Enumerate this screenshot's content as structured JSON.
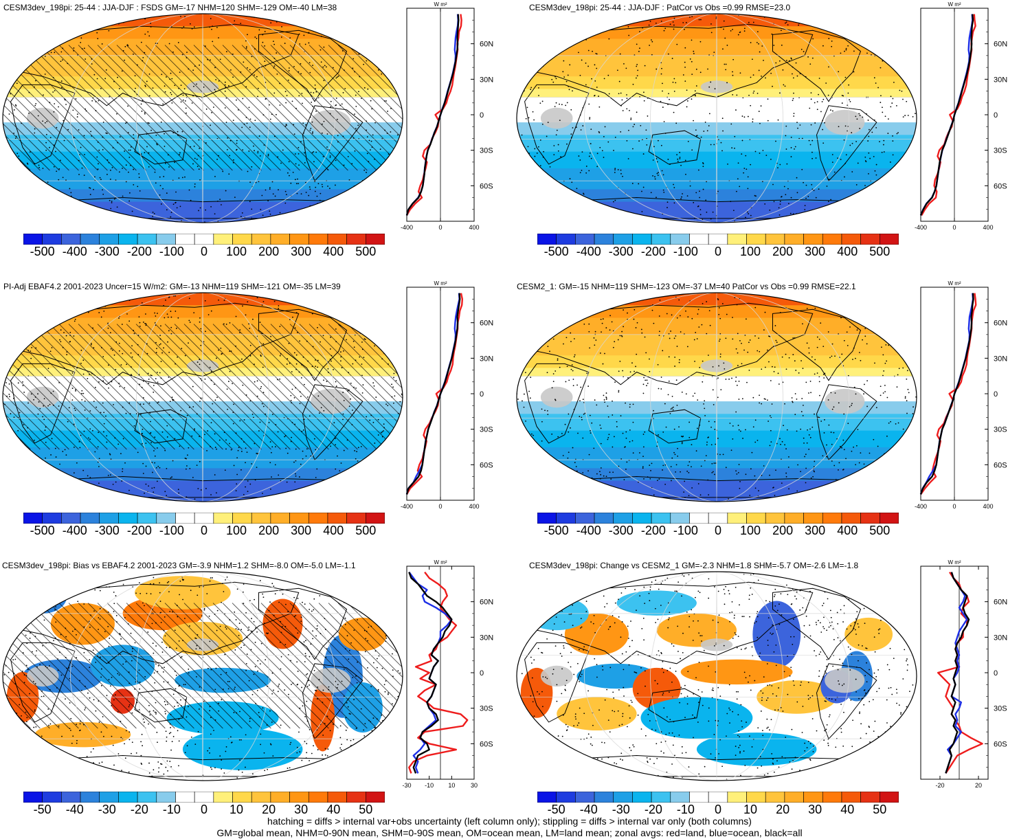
{
  "panels": [
    {
      "id": "p1",
      "title": "CESM3dev_198pi: 25-44 : JJA-DJF : FSDS GM=-17 NHM=120 SHM=-129 OM=-40 LM=38",
      "scale": "abs",
      "hatch": true,
      "stipple": true
    },
    {
      "id": "p2",
      "title": "CESM3dev_198pi: 25-44 : JJA-DJF : PatCor vs Obs =0.99 RMSE=23.0",
      "scale": "abs",
      "hatch": false,
      "stipple": true
    },
    {
      "id": "p3",
      "title": "PI-Adj EBAF4.2 2001-2023 Uncer=15 W/m2: GM=-13 NHM=119 SHM=-121 OM=-35 LM=39",
      "scale": "abs",
      "hatch": true,
      "stipple": true
    },
    {
      "id": "p4",
      "title": "CESM2_1: GM=-15 NHM=119 SHM=-123 OM=-37 LM=40 PatCor vs Obs =0.99 RMSE=22.1",
      "scale": "abs",
      "hatch": false,
      "stipple": true
    },
    {
      "id": "p5",
      "title": "CESM3dev_198pi: Bias vs EBAF4.2 2001-2023 GM=-3.9 NHM=1.2 SHM=-8.0 OM=-5.0 LM=-1.1",
      "scale": "diff",
      "hatch": true,
      "stipple": true
    },
    {
      "id": "p6",
      "title": "CESM3dev_198pi: Change vs CESM2_1 GM=-2.3 NHM=1.8 SHM=-5.7 OM=-2.6 LM=-1.8",
      "scale": "diff",
      "hatch": false,
      "stipple": true
    }
  ],
  "colorbars": {
    "abs": {
      "labels": [
        "-500",
        "-400",
        "-300",
        "-200",
        "-100",
        "0",
        "100",
        "200",
        "300",
        "400",
        "500"
      ]
    },
    "diff": {
      "labels": [
        "-50",
        "-40",
        "-30",
        "-20",
        "-10",
        "0",
        "10",
        "20",
        "30",
        "40",
        "50"
      ]
    }
  },
  "palette": [
    "#0a14e6",
    "#1e3ce0",
    "#3c64dc",
    "#2c82dc",
    "#1ea0e6",
    "#0ab4ee",
    "#3cc2f0",
    "#88ccec",
    "#ffffff",
    "#ffffff",
    "#fff07a",
    "#ffd84a",
    "#ffc43c",
    "#ffae28",
    "#ff9614",
    "#ff7a0a",
    "#f55a0a",
    "#e63214",
    "#d21414"
  ],
  "zonal": {
    "units": "W m²",
    "lat_labels": [
      "60N",
      "30N",
      "0",
      "30S",
      "60S"
    ],
    "abs_xticks": [
      "-400",
      "0",
      "400"
    ],
    "diff_left_xticks": [
      "-30",
      "-10",
      "10",
      "30"
    ],
    "diff_right_xticks": [
      "-20",
      "20"
    ],
    "legend": {
      "land": "red",
      "ocean": "blue",
      "all": "black"
    },
    "lat": [
      -85,
      -80,
      -75,
      -70,
      -65,
      -60,
      -55,
      -50,
      -45,
      -40,
      -35,
      -30,
      -25,
      -20,
      -15,
      -10,
      -5,
      0,
      5,
      10,
      15,
      20,
      25,
      30,
      35,
      40,
      45,
      50,
      55,
      60,
      65,
      70,
      75,
      80,
      85
    ],
    "p1": {
      "all": [
        -420,
        -380,
        -330,
        -260,
        -230,
        -210,
        -200,
        -190,
        -185,
        -175,
        -165,
        -150,
        -120,
        -95,
        -70,
        -40,
        -20,
        0,
        25,
        50,
        70,
        90,
        110,
        130,
        150,
        165,
        180,
        190,
        200,
        205,
        200,
        205,
        210,
        215,
        210
      ],
      "land": [
        -400,
        -360,
        -300,
        -220,
        -260,
        -240,
        -210,
        -195,
        -175,
        -160,
        -210,
        -190,
        -120,
        -100,
        -60,
        -30,
        -20,
        -60,
        30,
        70,
        90,
        120,
        140,
        150,
        160,
        175,
        185,
        195,
        205,
        200,
        215,
        220,
        245,
        250,
        240
      ],
      "ocean": [
        -420,
        -380,
        -330,
        -265,
        -230,
        -210,
        -200,
        -192,
        -186,
        -176,
        -166,
        -150,
        -122,
        -96,
        -72,
        -42,
        -20,
        2,
        22,
        48,
        68,
        86,
        108,
        128,
        146,
        162,
        176,
        180,
        170,
        175,
        180,
        190,
        205,
        210,
        205
      ]
    },
    "p2": {
      "all": [
        -400,
        -370,
        -330,
        -265,
        -235,
        -215,
        -205,
        -195,
        -185,
        -175,
        -160,
        -145,
        -115,
        -90,
        -65,
        -40,
        -15,
        0,
        25,
        50,
        70,
        90,
        110,
        130,
        150,
        165,
        180,
        190,
        200,
        205,
        200,
        205,
        210,
        220,
        215
      ],
      "land": [
        -390,
        -350,
        -300,
        -220,
        -210,
        -240,
        -230,
        -200,
        -180,
        -165,
        -200,
        -180,
        -120,
        -100,
        -70,
        -30,
        -20,
        -55,
        35,
        70,
        90,
        120,
        140,
        150,
        160,
        175,
        185,
        195,
        205,
        200,
        210,
        220,
        250,
        240,
        235
      ],
      "ocean": [
        -400,
        -372,
        -332,
        -268,
        -236,
        -214,
        -204,
        -194,
        -184,
        -174,
        -158,
        -144,
        -116,
        -92,
        -66,
        -42,
        -16,
        2,
        22,
        48,
        66,
        86,
        106,
        126,
        144,
        160,
        174,
        178,
        168,
        172,
        178,
        190,
        205,
        215,
        210
      ]
    },
    "p3": {
      "all": [
        -420,
        -380,
        -320,
        -260,
        -230,
        -215,
        -205,
        -195,
        -185,
        -175,
        -160,
        -145,
        -120,
        -95,
        -70,
        -40,
        -20,
        0,
        30,
        55,
        75,
        95,
        115,
        135,
        150,
        165,
        180,
        190,
        200,
        205,
        200,
        210,
        220,
        230,
        225
      ],
      "land": [
        -400,
        -360,
        -290,
        -220,
        -270,
        -250,
        -215,
        -200,
        -180,
        -165,
        -200,
        -180,
        -130,
        -100,
        -60,
        -30,
        -20,
        -50,
        35,
        75,
        95,
        125,
        145,
        150,
        160,
        175,
        185,
        195,
        205,
        205,
        220,
        230,
        255,
        260,
        245
      ],
      "ocean": [
        -420,
        -382,
        -322,
        -290,
        -250,
        -216,
        -206,
        -196,
        -186,
        -176,
        -160,
        -145,
        -121,
        -96,
        -72,
        -42,
        -21,
        2,
        26,
        52,
        72,
        92,
        112,
        132,
        146,
        162,
        176,
        180,
        170,
        175,
        182,
        195,
        210,
        225,
        220
      ]
    },
    "p4": {
      "all": [
        -410,
        -375,
        -330,
        -265,
        -235,
        -215,
        -205,
        -195,
        -185,
        -175,
        -160,
        -145,
        -115,
        -90,
        -65,
        -40,
        -15,
        0,
        30,
        55,
        75,
        95,
        115,
        135,
        150,
        165,
        180,
        190,
        200,
        205,
        200,
        210,
        215,
        225,
        220
      ],
      "land": [
        -400,
        -350,
        -290,
        -220,
        -260,
        -245,
        -225,
        -200,
        -180,
        -165,
        -205,
        -185,
        -125,
        -100,
        -65,
        -30,
        -20,
        -60,
        40,
        80,
        95,
        125,
        145,
        150,
        160,
        175,
        185,
        195,
        205,
        205,
        215,
        225,
        255,
        250,
        240
      ],
      "ocean": [
        -410,
        -378,
        -334,
        -300,
        -255,
        -216,
        -206,
        -196,
        -186,
        -176,
        -160,
        -145,
        -116,
        -92,
        -66,
        -42,
        -16,
        2,
        26,
        52,
        72,
        92,
        112,
        132,
        146,
        162,
        176,
        180,
        170,
        175,
        180,
        195,
        210,
        220,
        215
      ]
    },
    "p5": {
      "all": [
        -22,
        -24,
        -22,
        -20,
        -10,
        -12,
        -18,
        -16,
        -8,
        -2,
        -4,
        -10,
        -12,
        -8,
        -6,
        -4,
        -10,
        -8,
        -6,
        -2,
        -8,
        -6,
        -2,
        2,
        4,
        8,
        10,
        6,
        2,
        -4,
        -12,
        -16,
        -20,
        -26,
        -28
      ],
      "land": [
        -26,
        -28,
        -24,
        -12,
        14,
        -10,
        -20,
        -14,
        20,
        24,
        18,
        -6,
        -12,
        -20,
        -14,
        -4,
        -18,
        -10,
        -22,
        -8,
        -10,
        -4,
        -2,
        6,
        10,
        14,
        8,
        4,
        0,
        2,
        6,
        4,
        -2,
        -10,
        -14
      ],
      "ocean": [
        -20,
        -22,
        -20,
        -24,
        -18,
        -14,
        -18,
        -16,
        -10,
        -4,
        -6,
        -10,
        -12,
        -8,
        -6,
        -4,
        -10,
        -8,
        -6,
        -2,
        -8,
        -6,
        -2,
        0,
        0,
        6,
        10,
        4,
        -4,
        -14,
        -16,
        -12,
        -20,
        -24,
        -28
      ]
    },
    "p6": {
      "all": [
        -14,
        -12,
        -10,
        -8,
        -10,
        -6,
        -4,
        -2,
        -6,
        -4,
        -8,
        -6,
        -4,
        -8,
        -6,
        -4,
        -6,
        -4,
        -2,
        -4,
        -2,
        -4,
        -2,
        2,
        4,
        8,
        10,
        6,
        4,
        6,
        8,
        2,
        -2,
        -6,
        -8
      ],
      "land": [
        -14,
        -10,
        -6,
        -2,
        10,
        24,
        12,
        2,
        0,
        -4,
        -8,
        -6,
        -10,
        -14,
        -12,
        -10,
        -16,
        -22,
        0,
        -4,
        -2,
        -4,
        -2,
        4,
        4,
        8,
        8,
        2,
        4,
        10,
        8,
        2,
        0,
        -6,
        -10
      ],
      "ocean": [
        -14,
        -12,
        -10,
        -8,
        -12,
        -6,
        -2,
        2,
        -4,
        -2,
        -4,
        0,
        2,
        -8,
        -6,
        -4,
        -6,
        -2,
        0,
        -2,
        0,
        -2,
        -4,
        -2,
        0,
        4,
        8,
        4,
        0,
        4,
        6,
        2,
        -2,
        -6,
        -8
      ]
    }
  },
  "footer": [
    "hatching = diffs > internal var+obs uncertainty (left column only); stippling = diffs > internal var only (both columns)",
    "GM=global mean, NHM=0-90N mean, SHM=0-90S mean, OM=ocean mean, LM=land mean; zonal avgs: red=land, blue=ocean, black=all"
  ]
}
